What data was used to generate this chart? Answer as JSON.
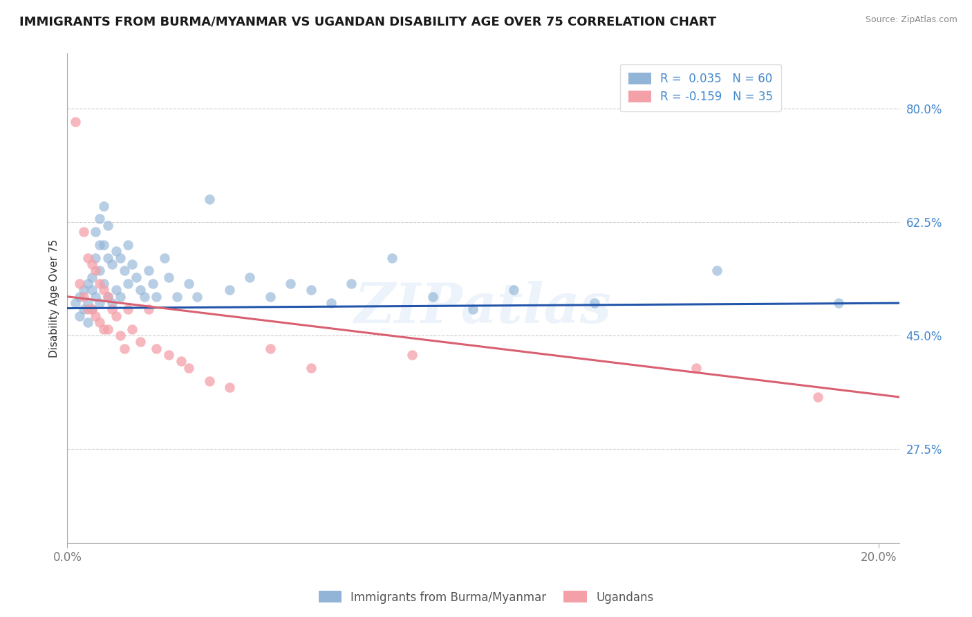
{
  "title": "IMMIGRANTS FROM BURMA/MYANMAR VS UGANDAN DISABILITY AGE OVER 75 CORRELATION CHART",
  "source": "Source: ZipAtlas.com",
  "ylabel": "Disability Age Over 75",
  "y_tick_labels": [
    "80.0%",
    "62.5%",
    "45.0%",
    "27.5%"
  ],
  "y_tick_values": [
    0.8,
    0.625,
    0.45,
    0.275
  ],
  "x_range": [
    0.0,
    0.205
  ],
  "y_range": [
    0.13,
    0.885
  ],
  "blue_color": "#92B4D7",
  "pink_color": "#F4A0A8",
  "blue_line_color": "#2255AA",
  "pink_line_color": "#D96070",
  "background_color": "#FFFFFF",
  "grid_color": "#CCCCCC",
  "axis_color": "#AAAAAA",
  "tick_color": "#4488CC",
  "watermark": "ZIPatlas",
  "title_fontsize": 13,
  "axis_label_fontsize": 11,
  "tick_fontsize": 12,
  "legend_fontsize": 12,
  "blue_x": [
    0.002,
    0.003,
    0.003,
    0.004,
    0.004,
    0.005,
    0.005,
    0.005,
    0.006,
    0.006,
    0.006,
    0.007,
    0.007,
    0.007,
    0.008,
    0.008,
    0.008,
    0.008,
    0.009,
    0.009,
    0.009,
    0.01,
    0.01,
    0.01,
    0.011,
    0.011,
    0.012,
    0.012,
    0.013,
    0.013,
    0.014,
    0.015,
    0.015,
    0.016,
    0.017,
    0.018,
    0.019,
    0.02,
    0.021,
    0.022,
    0.024,
    0.025,
    0.027,
    0.03,
    0.032,
    0.035,
    0.04,
    0.045,
    0.05,
    0.055,
    0.06,
    0.065,
    0.07,
    0.08,
    0.09,
    0.1,
    0.11,
    0.13,
    0.16,
    0.19
  ],
  "blue_y": [
    0.5,
    0.51,
    0.48,
    0.52,
    0.49,
    0.53,
    0.5,
    0.47,
    0.52,
    0.49,
    0.54,
    0.61,
    0.57,
    0.51,
    0.63,
    0.59,
    0.55,
    0.5,
    0.65,
    0.59,
    0.53,
    0.62,
    0.57,
    0.51,
    0.56,
    0.5,
    0.58,
    0.52,
    0.57,
    0.51,
    0.55,
    0.59,
    0.53,
    0.56,
    0.54,
    0.52,
    0.51,
    0.55,
    0.53,
    0.51,
    0.57,
    0.54,
    0.51,
    0.53,
    0.51,
    0.66,
    0.52,
    0.54,
    0.51,
    0.53,
    0.52,
    0.5,
    0.53,
    0.57,
    0.51,
    0.49,
    0.52,
    0.5,
    0.55,
    0.5
  ],
  "pink_x": [
    0.002,
    0.003,
    0.004,
    0.004,
    0.005,
    0.005,
    0.006,
    0.006,
    0.007,
    0.007,
    0.008,
    0.008,
    0.009,
    0.009,
    0.01,
    0.01,
    0.011,
    0.012,
    0.013,
    0.014,
    0.015,
    0.016,
    0.018,
    0.02,
    0.022,
    0.025,
    0.028,
    0.03,
    0.035,
    0.04,
    0.05,
    0.06,
    0.085,
    0.155,
    0.185
  ],
  "pink_y": [
    0.78,
    0.53,
    0.61,
    0.51,
    0.57,
    0.49,
    0.56,
    0.49,
    0.55,
    0.48,
    0.53,
    0.47,
    0.52,
    0.46,
    0.51,
    0.46,
    0.49,
    0.48,
    0.45,
    0.43,
    0.49,
    0.46,
    0.44,
    0.49,
    0.43,
    0.42,
    0.41,
    0.4,
    0.38,
    0.37,
    0.43,
    0.4,
    0.42,
    0.4,
    0.355
  ],
  "blue_line_x": [
    0.0,
    0.205
  ],
  "blue_line_y": [
    0.492,
    0.5
  ],
  "pink_line_x": [
    0.0,
    0.205
  ],
  "pink_line_y": [
    0.51,
    0.355
  ]
}
